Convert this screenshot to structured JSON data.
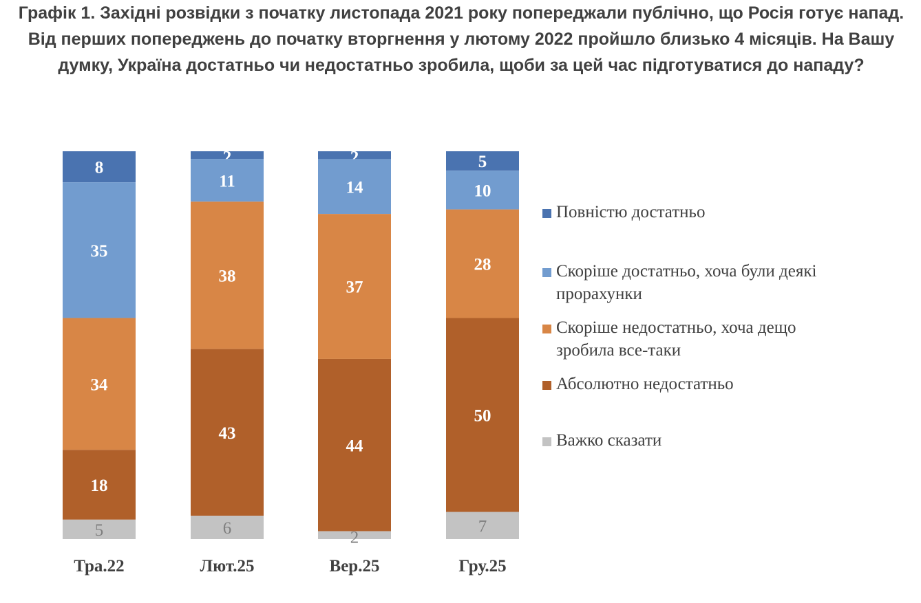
{
  "title": "Графік 1. Західні розвідки з початку листопада 2021 року попереджали публічно, що Росія готує напад. Від перших попереджень до початку вторгнення у лютому 2022 пройшло близько 4 місяців. На Вашу думку, Україна достатньо чи недостатньо зробила, щоби за цей час підготуватися до нападу?",
  "chart_data": {
    "type": "bar",
    "stacked": true,
    "title": "Графік 1. Західні розвідки з початку листопада 2021 року попереджали публічно, що Росія готує напад. Від перших попереджень до початку вторгнення у лютому 2022 пройшло близько 4 місяців. На Вашу думку, Україна достатньо чи недостатньо зробила, щоби за цей час підготуватися до нападу?",
    "categories": [
      "Тра.22",
      "Лют.25",
      "Вер.25",
      "Гру.25"
    ],
    "series": [
      {
        "name": "Повністю достатньо",
        "color": "#4a73b0",
        "values": [
          8,
          2,
          2,
          5
        ]
      },
      {
        "name": "Скоріше достатньо, хоча були деякі прорахунки",
        "color": "#729ccf",
        "values": [
          35,
          11,
          14,
          10
        ]
      },
      {
        "name": "Скоріше недостатньо, хоча дещо зробила все-таки",
        "color": "#d88646",
        "values": [
          34,
          38,
          37,
          28
        ]
      },
      {
        "name": "Абсолютно недостатньо",
        "color": "#b0602a",
        "values": [
          18,
          43,
          44,
          50
        ]
      },
      {
        "name": "Важко сказати",
        "color": "#c3c3c3",
        "values": [
          5,
          6,
          2,
          7
        ]
      }
    ],
    "legend_position": "right",
    "grid": false
  }
}
